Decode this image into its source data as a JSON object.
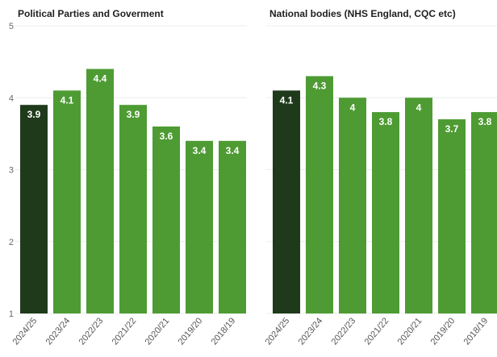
{
  "chart_data": [
    {
      "type": "bar",
      "title": "Political Parties and Goverment",
      "categories": [
        "2024/25",
        "2023/24",
        "2022/23",
        "2021/22",
        "2020/21",
        "2019/20",
        "2018/19"
      ],
      "values": [
        3.9,
        4.1,
        4.4,
        3.9,
        3.6,
        3.4,
        3.4
      ],
      "data_labels": [
        "3.9",
        "4.1",
        "4.4",
        "3.9",
        "3.6",
        "3.4",
        "3.4"
      ],
      "ylim": [
        1,
        5
      ],
      "yticks": [
        "1",
        "2",
        "3",
        "4",
        "5"
      ],
      "grid": true
    },
    {
      "type": "bar",
      "title": "National bodies (NHS England, CQC etc)",
      "categories": [
        "2024/25",
        "2023/24",
        "2022/23",
        "2021/22",
        "2020/21",
        "2019/20",
        "2018/19"
      ],
      "values": [
        4.1,
        4.3,
        4.0,
        3.8,
        4.0,
        3.7,
        3.8
      ],
      "data_labels": [
        "4.1",
        "4.3",
        "4",
        "3.8",
        "4",
        "3.7",
        "3.8"
      ],
      "ylim": [
        1,
        5
      ],
      "grid": true
    }
  ],
  "colors": {
    "highlight_bar": "#1f3a1a",
    "bar": "#4e9b33"
  }
}
